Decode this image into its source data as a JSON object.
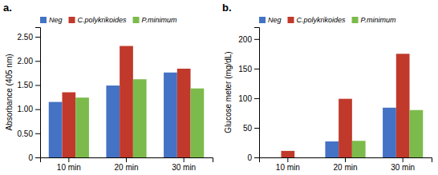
{
  "chart_data": [
    {
      "type": "bar",
      "title": "a.",
      "ylabel": "Absorbance (405 nm)",
      "categories": [
        "10 min",
        "20 min",
        "30 min"
      ],
      "series": [
        {
          "name": "Neg",
          "color": "#4472C4",
          "values": [
            1.15,
            1.49,
            1.76
          ]
        },
        {
          "name": "C.polykrikoides",
          "color": "#C0392B",
          "values": [
            1.35,
            2.31,
            1.84
          ]
        },
        {
          "name": "P.minimum",
          "color": "#7CBB4B",
          "values": [
            1.24,
            1.62,
            1.43
          ]
        }
      ],
      "ylim": [
        0,
        2.7
      ],
      "yticks": [
        0,
        {
          "value": 0.5,
          "label": "0.50"
        },
        {
          "value": 1.0,
          "label": "1.00"
        },
        {
          "value": 1.5,
          "label": "1.50"
        },
        {
          "value": 2.0,
          "label": "2.00"
        },
        {
          "value": 2.5,
          "label": "2.50"
        }
      ],
      "legend": "upper left",
      "grid": false
    },
    {
      "type": "bar",
      "title": "b.",
      "ylabel": "Glucose meter (mg/dL)",
      "categories": [
        "10 min",
        "20 min",
        "30 min"
      ],
      "series": [
        {
          "name": "Neg",
          "color": "#4472C4",
          "values": [
            0,
            27,
            84
          ]
        },
        {
          "name": "C.polykrikoides",
          "color": "#C0392B",
          "values": [
            11,
            99,
            175
          ]
        },
        {
          "name": "P.minimum",
          "color": "#7CBB4B",
          "values": [
            0,
            28,
            80
          ]
        }
      ],
      "ylim": [
        0,
        220
      ],
      "yticks": [
        0,
        50,
        100,
        150,
        200
      ],
      "legend": "upper left",
      "grid": false
    }
  ]
}
